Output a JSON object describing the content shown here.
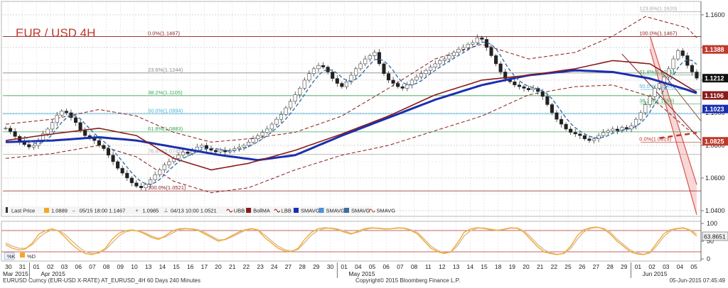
{
  "chart_data": {
    "type": "line",
    "title": "EUR / USD 4H",
    "footer": {
      "left": "EURUSD Curncy (EUR-USD X-RATE) AT_EURUSD_4H 60 Days 240 Minutes",
      "center": "Copyright© 2015 Bloomberg Finance L.P.",
      "right": "05-Jun-2015 07:45:49"
    },
    "legend": {
      "items": [
        {
          "label": "Last Price",
          "style": "candle"
        },
        {
          "label": "1.0889",
          "style": "box",
          "color": "#f5a623"
        },
        {
          "label": "05/15 18:00 1.1467",
          "style": "dash",
          "color": "#555555"
        },
        {
          "label": "1.0985",
          "style": "cross",
          "color": "#555555"
        },
        {
          "label": "04/13 10:00 1.0521",
          "style": "tick",
          "color": "#555555"
        },
        {
          "label": "UBB",
          "style": "bb",
          "color": "#8b1a1a"
        },
        {
          "label": "BollMA",
          "style": "box",
          "color": "#8b1a1a"
        },
        {
          "label": "LBB",
          "style": "bb",
          "color": "#8b1a1a"
        },
        {
          "label": "SMAVG",
          "style": "box",
          "color": "#1a2fb0"
        },
        {
          "label": "SMAVG",
          "style": "box",
          "color": "#4a90d9"
        },
        {
          "label": "SMAVG",
          "style": "dashbox",
          "color": "#3a6ea5"
        },
        {
          "label": "SMAVG",
          "style": "bb",
          "color": "#c0392b"
        }
      ]
    },
    "osc_legend": [
      "%K",
      "%D"
    ],
    "y_axis": {
      "ticks": [
        "1.1600",
        "1.1400",
        "1.1200",
        "1.1000",
        "1.0800",
        "1.0600",
        "1.0400"
      ],
      "ylim": [
        1.0365,
        1.1665
      ]
    },
    "price_labels": [
      {
        "value": "1.1388",
        "color": "#c0392b"
      },
      {
        "value": "1.1212",
        "color": "#111111"
      },
      {
        "value": "1.1106",
        "color": "#8b1a1a"
      },
      {
        "value": "1.1023",
        "color": "#1a2fb0"
      },
      {
        "value": "1.0825",
        "color": "#c0392b"
      }
    ],
    "osc_axis": {
      "ticks": [
        "100",
        "50",
        "0"
      ],
      "last": "63.8651"
    },
    "fib_levels": [
      {
        "label": "0.0%(1.1467)",
        "value": 1.1467,
        "color": "#8b1a1a"
      },
      {
        "label": "23.6%(1.1244)",
        "value": 1.1244,
        "color": "#888888"
      },
      {
        "label": "38.2%(1.1105)",
        "value": 1.1105,
        "color": "#3aa657"
      },
      {
        "label": "50.0%(1.0994)",
        "value": 1.0994,
        "color": "#4fb3d9"
      },
      {
        "label": "61.8%(1.0883)",
        "value": 1.0883,
        "color": "#3aa657"
      },
      {
        "label": "76.4%(1.0745)",
        "value": 1.0745,
        "color": "#aaaaaa"
      },
      {
        "label": "100.0%(1.0521)",
        "value": 1.0521,
        "color": "#8b1a1a"
      }
    ],
    "fib_levels_2": [
      {
        "label": "100.0%(1.1467)",
        "value": 1.1467,
        "color": "#8b1a1a"
      },
      {
        "label": "123.6%(1.1620)",
        "value": 1.162,
        "color": "#aaaaaa"
      },
      {
        "label": "61.8%(1.1231)",
        "value": 1.1231,
        "color": "#3aa657"
      },
      {
        "label": "50.0%(1.1143)",
        "value": 1.1143,
        "color": "#4fb3d9"
      },
      {
        "label": "38.2%(1.1055)",
        "value": 1.1055,
        "color": "#3aa657"
      },
      {
        "label": "0.0%(1.0819)",
        "value": 1.0819,
        "color": "#c0392b"
      }
    ],
    "x_axis": {
      "day_ticks": [
        "30",
        "31",
        "01",
        "02",
        "03",
        "06",
        "07",
        "08",
        "09",
        "10",
        "13",
        "14",
        "15",
        "16",
        "17",
        "20",
        "21",
        "22",
        "23",
        "24",
        "27",
        "28",
        "29",
        "30",
        "01",
        "04",
        "05",
        "06",
        "07",
        "08",
        "11",
        "12",
        "13",
        "14",
        "15",
        "18",
        "19",
        "20",
        "21",
        "22",
        "25",
        "26",
        "27",
        "28",
        "29",
        "01",
        "02",
        "03",
        "04",
        "05"
      ],
      "month_labels": [
        "Mar 2015",
        "Apr 2015",
        "May 2015",
        "Jun 2015"
      ]
    },
    "series": [
      {
        "name": "Last Price",
        "role": "close",
        "values": [
          1.0905,
          1.0885,
          1.0855,
          1.0825,
          1.0805,
          1.079,
          1.08,
          1.083,
          1.087,
          1.09,
          1.094,
          1.0985,
          1.101,
          1.1,
          1.097,
          1.094,
          1.089,
          1.086,
          1.085,
          1.083,
          1.08,
          1.078,
          1.074,
          1.07,
          1.066,
          1.063,
          1.06,
          1.057,
          1.055,
          1.054,
          1.056,
          1.059,
          1.062,
          1.065,
          1.068,
          1.07,
          1.072,
          1.074,
          1.076,
          1.075,
          1.077,
          1.079,
          1.08,
          1.078,
          1.077,
          1.076,
          1.077,
          1.076,
          1.077,
          1.078,
          1.079,
          1.08,
          1.082,
          1.084,
          1.086,
          1.088,
          1.09,
          1.093,
          1.096,
          1.099,
          1.103,
          1.107,
          1.111,
          1.115,
          1.12,
          1.124,
          1.127,
          1.129,
          1.128,
          1.125,
          1.121,
          1.118,
          1.116,
          1.119,
          1.123,
          1.127,
          1.13,
          1.133,
          1.135,
          1.137,
          1.13,
          1.124,
          1.12,
          1.118,
          1.116,
          1.115,
          1.117,
          1.12,
          1.122,
          1.124,
          1.126,
          1.128,
          1.13,
          1.132,
          1.133,
          1.135,
          1.137,
          1.139,
          1.14,
          1.142,
          1.143,
          1.146,
          1.145,
          1.14,
          1.135,
          1.13,
          1.125,
          1.121,
          1.119,
          1.117,
          1.116,
          1.115,
          1.114,
          1.115,
          1.113,
          1.11,
          1.105,
          1.1,
          1.096,
          1.093,
          1.09,
          1.088,
          1.087,
          1.086,
          1.084,
          1.083,
          1.084,
          1.086,
          1.088,
          1.089,
          1.09,
          1.089,
          1.091,
          1.09,
          1.092,
          1.096,
          1.1,
          1.105,
          1.11,
          1.115,
          1.118,
          1.122,
          1.127,
          1.133,
          1.138,
          1.135,
          1.129,
          1.125,
          1.1212
        ]
      },
      {
        "name": "SMAVG",
        "role": "sma-long",
        "color": "#1a2fb0",
        "anchors": [
          [
            0,
            1.082
          ],
          [
            10,
            1.083
          ],
          [
            20,
            1.085
          ],
          [
            28,
            1.083
          ],
          [
            36,
            1.079
          ],
          [
            46,
            1.074
          ],
          [
            54,
            1.071
          ],
          [
            62,
            1.074
          ],
          [
            72,
            1.086
          ],
          [
            82,
            1.097
          ],
          [
            92,
            1.108
          ],
          [
            102,
            1.117
          ],
          [
            112,
            1.123
          ],
          [
            122,
            1.126
          ],
          [
            130,
            1.125
          ],
          [
            138,
            1.121
          ],
          [
            146,
            1.114
          ],
          [
            154,
            1.106
          ],
          [
            162,
            1.101
          ],
          [
            170,
            1.1
          ],
          [
            178,
            1.1
          ],
          [
            185,
            1.1023
          ]
        ]
      },
      {
        "name": "BollMA",
        "role": "boll-mid",
        "color": "#8b1a1a",
        "anchors": [
          [
            0,
            1.083
          ],
          [
            10,
            1.087
          ],
          [
            20,
            1.0905
          ],
          [
            28,
            1.086
          ],
          [
            36,
            1.072
          ],
          [
            44,
            1.065
          ],
          [
            52,
            1.069
          ],
          [
            62,
            1.077
          ],
          [
            72,
            1.087
          ],
          [
            82,
            1.098
          ],
          [
            92,
            1.111
          ],
          [
            102,
            1.12
          ],
          [
            112,
            1.123
          ],
          [
            122,
            1.127
          ],
          [
            130,
            1.132
          ],
          [
            138,
            1.13
          ],
          [
            146,
            1.116
          ],
          [
            154,
            1.103
          ],
          [
            162,
            1.095
          ],
          [
            170,
            1.094
          ],
          [
            178,
            1.1
          ],
          [
            185,
            1.1106
          ]
        ]
      },
      {
        "name": "UBB",
        "role": "boll-upper",
        "color": "#8b1a1a",
        "anchors": [
          [
            0,
            1.093
          ],
          [
            10,
            1.096
          ],
          [
            20,
            1.102
          ],
          [
            28,
            1.098
          ],
          [
            36,
            1.088
          ],
          [
            44,
            1.082
          ],
          [
            52,
            1.084
          ],
          [
            62,
            1.088
          ],
          [
            72,
            1.098
          ],
          [
            82,
            1.115
          ],
          [
            92,
            1.133
          ],
          [
            102,
            1.142
          ],
          [
            112,
            1.133
          ],
          [
            122,
            1.137
          ],
          [
            130,
            1.147
          ],
          [
            137,
            1.159
          ],
          [
            146,
            1.152
          ],
          [
            154,
            1.128
          ],
          [
            162,
            1.119
          ],
          [
            170,
            1.115
          ],
          [
            178,
            1.13
          ],
          [
            185,
            1.139
          ]
        ]
      },
      {
        "name": "LBB",
        "role": "boll-lower",
        "color": "#8b1a1a",
        "anchors": [
          [
            0,
            1.072
          ],
          [
            10,
            1.075
          ],
          [
            20,
            1.08
          ],
          [
            28,
            1.073
          ],
          [
            36,
            1.058
          ],
          [
            44,
            1.051
          ],
          [
            52,
            1.054
          ],
          [
            62,
            1.065
          ],
          [
            72,
            1.074
          ],
          [
            82,
            1.08
          ],
          [
            92,
            1.089
          ],
          [
            102,
            1.098
          ],
          [
            112,
            1.111
          ],
          [
            122,
            1.116
          ],
          [
            130,
            1.117
          ],
          [
            138,
            1.11
          ],
          [
            146,
            1.09
          ],
          [
            154,
            1.08
          ],
          [
            162,
            1.078
          ],
          [
            170,
            1.078
          ],
          [
            178,
            1.08
          ],
          [
            185,
            1.083
          ]
        ]
      },
      {
        "name": "SMAVG",
        "role": "sma-red-dashed",
        "color": "#c0392b",
        "anchors": [
          [
            140,
            1.0845
          ],
          [
            160,
            1.0925
          ],
          [
            185,
            1.1025
          ]
        ]
      }
    ],
    "stochastic": {
      "k": [
        40,
        30,
        25,
        28,
        45,
        70,
        80,
        85,
        78,
        60,
        40,
        25,
        15,
        12,
        18,
        30,
        55,
        72,
        80,
        82,
        78,
        70,
        60,
        55,
        65,
        78,
        85,
        86,
        84,
        80,
        70,
        60,
        50,
        55,
        65,
        75,
        82,
        86,
        80,
        60,
        45,
        30,
        22,
        20,
        30,
        55,
        75,
        85,
        88,
        86,
        82,
        75,
        70,
        78,
        85,
        88,
        86,
        84,
        85,
        88,
        86,
        80,
        70,
        50,
        30,
        20,
        15,
        20,
        45,
        75,
        85,
        88,
        86,
        82,
        80,
        84,
        88,
        86,
        75,
        55,
        35,
        20,
        15,
        12,
        16,
        35,
        65,
        82,
        88,
        90,
        84,
        70,
        50,
        35,
        20,
        14,
        12,
        20,
        45,
        70,
        82,
        86,
        88,
        80,
        64
      ],
      "d": [
        45,
        36,
        30,
        30,
        40,
        60,
        74,
        82,
        80,
        68,
        50,
        33,
        20,
        15,
        16,
        26,
        45,
        64,
        76,
        80,
        79,
        73,
        64,
        58,
        62,
        72,
        82,
        85,
        85,
        82,
        74,
        64,
        54,
        54,
        62,
        71,
        80,
        85,
        82,
        67,
        51,
        36,
        26,
        22,
        27,
        46,
        67,
        80,
        86,
        87,
        84,
        78,
        72,
        75,
        82,
        87,
        87,
        85,
        85,
        87,
        87,
        82,
        74,
        56,
        36,
        24,
        17,
        19,
        37,
        65,
        80,
        87,
        87,
        84,
        81,
        83,
        87,
        87,
        79,
        62,
        42,
        26,
        17,
        13,
        15,
        29,
        55,
        76,
        86,
        89,
        86,
        75,
        56,
        40,
        25,
        17,
        13,
        17,
        37,
        62,
        78,
        85,
        87,
        82,
        70
      ]
    },
    "annotations": [
      {
        "text": "0.0%(1.1467)",
        "color": "#8b1a1a"
      },
      {
        "text": "23.6%(1.1244)",
        "color": "#888888"
      },
      {
        "text": "38.2%(1.1105)",
        "color": "#3aa657"
      },
      {
        "text": "50.0%(1.0994)",
        "color": "#4fb3d9"
      },
      {
        "text": "61.8%(1.0883)",
        "color": "#3aa657"
      },
      {
        "text": "76.4%(1.0745)",
        "color": "#aaaaaa"
      },
      {
        "text": "100.0%(1.0521)",
        "color": "#8b1a1a"
      },
      {
        "text": "123.6%(1.1620)",
        "color": "#aaaaaa"
      },
      {
        "text": "100.0%(1.1467)",
        "color": "#8b1a1a"
      },
      {
        "text": "61.8%(1.1231)",
        "color": "#3aa657"
      },
      {
        "text": "50.0%(1.1143)",
        "color": "#4fb3d9"
      },
      {
        "text": "38.2%(1.1055)",
        "color": "#3aa657"
      },
      {
        "text": "0.0%(1.0819)",
        "color": "#c0392b"
      }
    ],
    "colors": {
      "title": "#c0392b",
      "grid": "#bdbdbd",
      "channel_fill": "#f4b6b6",
      "channel_line": "#d9534f",
      "candle": "#222222",
      "stoch_k": "#f5a623",
      "stoch_d": "#d8c0a0",
      "osc_ref": "#b03030"
    },
    "grid": true
  }
}
